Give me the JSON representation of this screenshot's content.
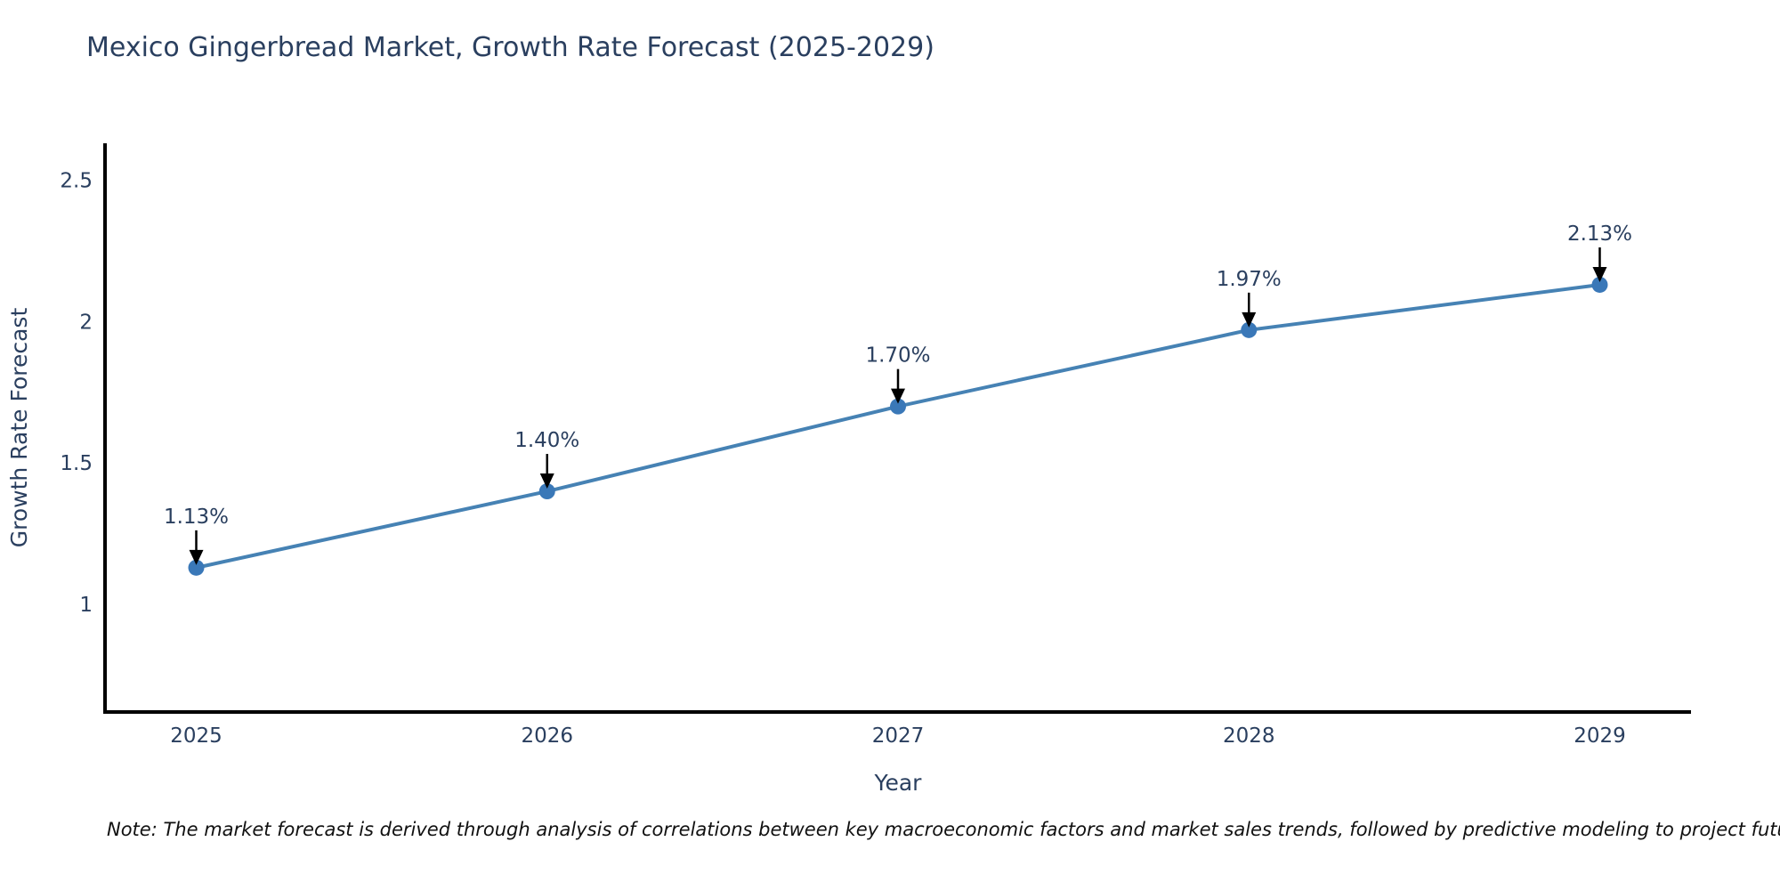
{
  "page": {
    "background_color": "#ffffff"
  },
  "chart_data": {
    "type": "line",
    "title": "Mexico Gingerbread Market, Growth Rate Forecast (2025-2029)",
    "xlabel": "Year",
    "ylabel": "Growth Rate Forecast",
    "x": [
      2025,
      2026,
      2027,
      2028,
      2029
    ],
    "y": [
      1.13,
      1.4,
      1.7,
      1.97,
      2.13
    ],
    "point_labels": [
      "1.13%",
      "1.40%",
      "1.70%",
      "1.97%",
      "2.13%"
    ],
    "x_tick_labels": [
      "2025",
      "2026",
      "2027",
      "2028",
      "2029"
    ],
    "x_tick_values": [
      2025,
      2026,
      2027,
      2028,
      2029
    ],
    "y_tick_labels": [
      "1",
      "1.5",
      "2",
      "2.5"
    ],
    "y_tick_values": [
      1,
      1.5,
      2,
      2.5
    ],
    "xlim": [
      2024.74,
      2029.26
    ],
    "ylim": [
      0.62,
      2.63
    ],
    "grid": false,
    "legend": false,
    "annotations_have_arrows": true,
    "colors": {
      "line": "#4682b4",
      "marker": "#3a78b8",
      "axis_line": "#000000",
      "text": "#2a3f5f",
      "annotation_text": "#2a3f5f",
      "arrow": "#000000"
    }
  },
  "note": {
    "text": "Note: The market forecast is derived through analysis of correlations between key macroeconomic factors and market sales trends, followed by predictive modeling to project future sales"
  }
}
